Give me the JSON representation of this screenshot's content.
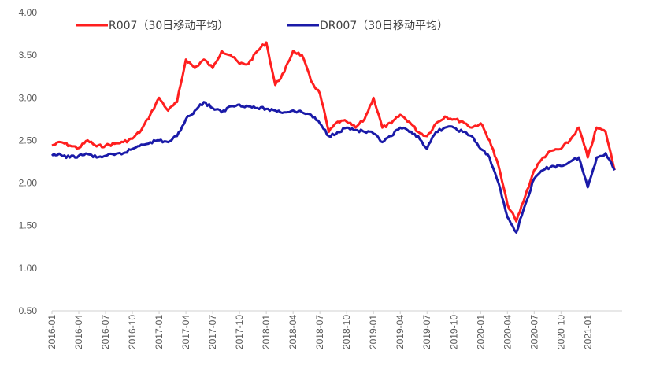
{
  "chart_data": {
    "type": "line",
    "title": "",
    "xlabel": "",
    "ylabel": "",
    "ylim": [
      0.5,
      4.0
    ],
    "yticks": [
      "4.00",
      "3.50",
      "3.00",
      "2.50",
      "2.00",
      "1.50",
      "1.00",
      "0.50"
    ],
    "xticks": [
      "2016-01",
      "2016-04",
      "2016-07",
      "2016-10",
      "2017-01",
      "2017-04",
      "2017-07",
      "2017-10",
      "2018-01",
      "2018-04",
      "2018-07",
      "2018-10",
      "2019-01",
      "2019-04",
      "2019-07",
      "2019-10",
      "2020-01",
      "2020-04",
      "2020-07",
      "2020-10",
      "2021-01"
    ],
    "grid": false,
    "legend": "top",
    "series": [
      {
        "name": "R007（30日移动平均）",
        "color": "#ff1f1f",
        "points": [
          [
            "2016-01",
            2.44
          ],
          [
            "2016-02",
            2.48
          ],
          [
            "2016-03",
            2.44
          ],
          [
            "2016-04",
            2.41
          ],
          [
            "2016-05",
            2.5
          ],
          [
            "2016-06",
            2.43
          ],
          [
            "2016-07",
            2.44
          ],
          [
            "2016-08",
            2.46
          ],
          [
            "2016-09",
            2.48
          ],
          [
            "2016-10",
            2.52
          ],
          [
            "2016-11",
            2.62
          ],
          [
            "2016-12",
            2.8
          ],
          [
            "2017-01",
            3.0
          ],
          [
            "2017-02",
            2.85
          ],
          [
            "2017-03",
            2.95
          ],
          [
            "2017-04",
            3.45
          ],
          [
            "2017-05",
            3.35
          ],
          [
            "2017-06",
            3.45
          ],
          [
            "2017-07",
            3.35
          ],
          [
            "2017-08",
            3.55
          ],
          [
            "2017-09",
            3.5
          ],
          [
            "2017-10",
            3.4
          ],
          [
            "2017-11",
            3.4
          ],
          [
            "2017-12",
            3.55
          ],
          [
            "2018-01",
            3.65
          ],
          [
            "2018-02",
            3.15
          ],
          [
            "2018-03",
            3.3
          ],
          [
            "2018-04",
            3.55
          ],
          [
            "2018-05",
            3.5
          ],
          [
            "2018-06",
            3.2
          ],
          [
            "2018-07",
            3.05
          ],
          [
            "2018-08",
            2.6
          ],
          [
            "2018-09",
            2.72
          ],
          [
            "2018-10",
            2.72
          ],
          [
            "2018-11",
            2.65
          ],
          [
            "2018-12",
            2.75
          ],
          [
            "2019-01",
            3.0
          ],
          [
            "2019-02",
            2.65
          ],
          [
            "2019-03",
            2.7
          ],
          [
            "2019-04",
            2.8
          ],
          [
            "2019-05",
            2.72
          ],
          [
            "2019-06",
            2.6
          ],
          [
            "2019-07",
            2.55
          ],
          [
            "2019-08",
            2.7
          ],
          [
            "2019-09",
            2.78
          ],
          [
            "2019-10",
            2.75
          ],
          [
            "2019-11",
            2.72
          ],
          [
            "2019-12",
            2.65
          ],
          [
            "2020-01",
            2.7
          ],
          [
            "2020-02",
            2.5
          ],
          [
            "2020-03",
            2.2
          ],
          [
            "2020-04",
            1.75
          ],
          [
            "2020-05",
            1.55
          ],
          [
            "2020-06",
            1.85
          ],
          [
            "2020-07",
            2.15
          ],
          [
            "2020-08",
            2.3
          ],
          [
            "2020-09",
            2.38
          ],
          [
            "2020-10",
            2.4
          ],
          [
            "2020-11",
            2.5
          ],
          [
            "2020-12",
            2.65
          ],
          [
            "2021-01",
            2.3
          ],
          [
            "2021-02",
            2.65
          ],
          [
            "2021-03",
            2.6
          ],
          [
            "2021-04",
            2.15
          ]
        ]
      },
      {
        "name": "DR007（30日移动平均）",
        "color": "#1a1aa8",
        "points": [
          [
            "2016-01",
            2.32
          ],
          [
            "2016-02",
            2.33
          ],
          [
            "2016-03",
            2.3
          ],
          [
            "2016-04",
            2.32
          ],
          [
            "2016-05",
            2.34
          ],
          [
            "2016-06",
            2.3
          ],
          [
            "2016-07",
            2.32
          ],
          [
            "2016-08",
            2.33
          ],
          [
            "2016-09",
            2.35
          ],
          [
            "2016-10",
            2.4
          ],
          [
            "2016-11",
            2.45
          ],
          [
            "2016-12",
            2.48
          ],
          [
            "2017-01",
            2.5
          ],
          [
            "2017-02",
            2.48
          ],
          [
            "2017-03",
            2.55
          ],
          [
            "2017-04",
            2.75
          ],
          [
            "2017-05",
            2.85
          ],
          [
            "2017-06",
            2.95
          ],
          [
            "2017-07",
            2.88
          ],
          [
            "2017-08",
            2.83
          ],
          [
            "2017-09",
            2.9
          ],
          [
            "2017-10",
            2.92
          ],
          [
            "2017-11",
            2.9
          ],
          [
            "2017-12",
            2.88
          ],
          [
            "2018-01",
            2.87
          ],
          [
            "2018-02",
            2.85
          ],
          [
            "2018-03",
            2.83
          ],
          [
            "2018-04",
            2.85
          ],
          [
            "2018-05",
            2.83
          ],
          [
            "2018-06",
            2.8
          ],
          [
            "2018-07",
            2.7
          ],
          [
            "2018-08",
            2.55
          ],
          [
            "2018-09",
            2.6
          ],
          [
            "2018-10",
            2.65
          ],
          [
            "2018-11",
            2.62
          ],
          [
            "2018-12",
            2.6
          ],
          [
            "2019-01",
            2.58
          ],
          [
            "2019-02",
            2.48
          ],
          [
            "2019-03",
            2.55
          ],
          [
            "2019-04",
            2.65
          ],
          [
            "2019-05",
            2.6
          ],
          [
            "2019-06",
            2.55
          ],
          [
            "2019-07",
            2.4
          ],
          [
            "2019-08",
            2.6
          ],
          [
            "2019-09",
            2.65
          ],
          [
            "2019-10",
            2.65
          ],
          [
            "2019-11",
            2.6
          ],
          [
            "2019-12",
            2.55
          ],
          [
            "2020-01",
            2.4
          ],
          [
            "2020-02",
            2.3
          ],
          [
            "2020-03",
            2.0
          ],
          [
            "2020-04",
            1.6
          ],
          [
            "2020-05",
            1.42
          ],
          [
            "2020-06",
            1.75
          ],
          [
            "2020-07",
            2.05
          ],
          [
            "2020-08",
            2.15
          ],
          [
            "2020-09",
            2.2
          ],
          [
            "2020-10",
            2.2
          ],
          [
            "2020-11",
            2.25
          ],
          [
            "2020-12",
            2.3
          ],
          [
            "2021-01",
            1.95
          ],
          [
            "2021-02",
            2.3
          ],
          [
            "2021-03",
            2.35
          ],
          [
            "2021-04",
            2.15
          ]
        ]
      }
    ]
  }
}
